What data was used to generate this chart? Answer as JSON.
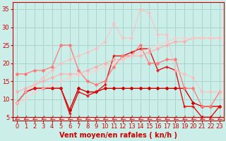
{
  "bg_color": "#cceee8",
  "grid_color": "#aad4cc",
  "xlabel": "Vent moyen/en rafales ( kn/h )",
  "xlim": [
    -0.5,
    23.5
  ],
  "ylim": [
    4,
    37
  ],
  "yticks": [
    5,
    10,
    15,
    20,
    25,
    30,
    35
  ],
  "xticks": [
    0,
    1,
    2,
    3,
    4,
    5,
    6,
    7,
    8,
    9,
    10,
    11,
    12,
    13,
    14,
    15,
    16,
    17,
    18,
    19,
    20,
    21,
    22,
    23
  ],
  "lines": [
    {
      "x": [
        0,
        1,
        2,
        3,
        4,
        5,
        6,
        7,
        8,
        9,
        10,
        11,
        12,
        13,
        14,
        15,
        16,
        17,
        18,
        19,
        20,
        21,
        22,
        23
      ],
      "y": [
        9,
        12,
        13,
        13,
        13,
        13,
        7,
        13,
        12,
        12,
        13,
        13,
        13,
        13,
        13,
        13,
        13,
        13,
        13,
        13,
        9,
        8,
        8,
        8
      ],
      "color": "#cc0000",
      "lw": 1.0,
      "marker": "D",
      "ms": 2.0,
      "alpha": 1.0
    },
    {
      "x": [
        0,
        1,
        2,
        3,
        4,
        5,
        6,
        7,
        8,
        9,
        10,
        11,
        12,
        13,
        14,
        15,
        16,
        17,
        18,
        19,
        20,
        21,
        22,
        23
      ],
      "y": [
        9,
        12,
        13,
        13,
        13,
        13,
        6,
        12,
        11,
        12,
        14,
        22,
        22,
        23,
        24,
        24,
        18,
        19,
        18,
        8,
        8,
        5,
        5,
        8
      ],
      "color": "#dd1111",
      "lw": 1.0,
      "marker": "+",
      "ms": 3.5,
      "alpha": 1.0
    },
    {
      "x": [
        0,
        1,
        2,
        3,
        4,
        5,
        6,
        7,
        8,
        9,
        10,
        11,
        12,
        13,
        14,
        15,
        16,
        17,
        18,
        19,
        20,
        21,
        22,
        23
      ],
      "y": [
        17,
        17,
        18,
        18,
        19,
        25,
        25,
        18,
        15,
        14,
        15,
        19,
        22,
        22,
        25,
        20,
        20,
        21,
        21,
        13,
        13,
        8,
        8,
        12
      ],
      "color": "#ff7777",
      "lw": 1.0,
      "marker": "D",
      "ms": 2.0,
      "alpha": 0.9
    },
    {
      "x": [
        0,
        1,
        2,
        3,
        4,
        5,
        6,
        7,
        8,
        9,
        10,
        11,
        12,
        13,
        14,
        15,
        16,
        17,
        18,
        19,
        20,
        21,
        22,
        23
      ],
      "y": [
        12,
        13,
        14,
        15,
        16,
        17,
        17,
        17,
        18,
        19,
        20,
        21,
        21,
        22,
        22,
        23,
        24,
        25,
        26,
        26,
        27,
        27,
        27,
        27
      ],
      "color": "#ffaaaa",
      "lw": 1.0,
      "marker": "D",
      "ms": 2.0,
      "alpha": 0.75
    },
    {
      "x": [
        0,
        1,
        2,
        3,
        4,
        5,
        6,
        7,
        8,
        9,
        10,
        11,
        12,
        13,
        14,
        15,
        16,
        17,
        18,
        19,
        20,
        21,
        22,
        23
      ],
      "y": [
        9,
        12,
        14,
        16,
        18,
        20,
        21,
        22,
        23,
        24,
        26,
        31,
        27,
        27,
        35,
        34,
        28,
        28,
        18,
        17,
        16,
        12,
        12,
        12
      ],
      "color": "#ffbbbb",
      "lw": 1.0,
      "marker": "D",
      "ms": 2.0,
      "alpha": 0.65
    },
    {
      "x": [
        0,
        1,
        2,
        3,
        4,
        5,
        6,
        7,
        8,
        9,
        10,
        11,
        12,
        13,
        14,
        15,
        16,
        17,
        18,
        19,
        20,
        21,
        22,
        23
      ],
      "y": [
        9,
        10,
        12,
        13,
        14,
        15,
        16,
        17,
        17,
        18,
        19,
        20,
        21,
        22,
        23,
        24,
        25,
        26,
        27,
        27,
        27,
        27,
        27,
        27
      ],
      "color": "#ffcccc",
      "lw": 1.0,
      "marker": "D",
      "ms": 2.0,
      "alpha": 0.6
    }
  ],
  "xlabel_color": "#cc0000",
  "xlabel_fontsize": 7,
  "tick_color": "#cc0000",
  "tick_fontsize": 6,
  "spine_color": "#cc0000"
}
